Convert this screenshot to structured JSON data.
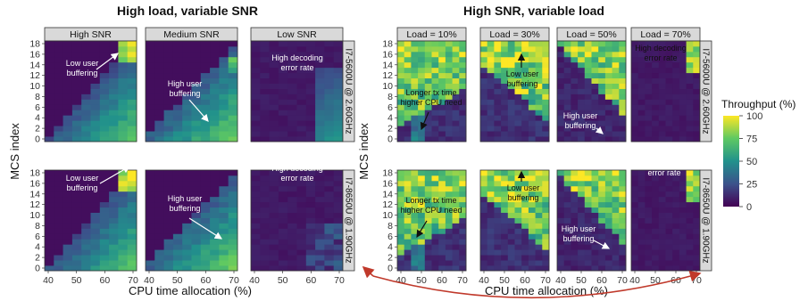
{
  "figure": {
    "left_title": "High load, variable SNR",
    "right_title": "High SNR, variable load",
    "ylabel": "MCS index",
    "xlabel": "CPU time allocation (%)",
    "row_labels": [
      "I7-5600U @ 2.60GHz",
      "I7-8650U @ 1.90GHz"
    ],
    "left_panels": [
      "High SNR",
      "Medium SNR",
      "Low SNR"
    ],
    "right_panels": [
      "Load = 10%",
      "Load = 30%",
      "Load = 50%",
      "Load = 70%"
    ],
    "legend_title": "Throughput (%)",
    "legend_ticks": [
      0,
      25,
      50,
      75,
      100
    ],
    "colors": {
      "accent_arrow": "#c0392b",
      "strip_bg": "#d9d9d9",
      "panel_border": "#333333"
    }
  },
  "annotations": {
    "low_user_buffering": "Low user\nbuffering",
    "high_user_buffering": "High user\nbuffering",
    "high_decoding_error": "High decoding\nerror rate",
    "longer_tx": "Longer tx time\nhigher CPU need"
  },
  "chart_data": {
    "type": "heatmap",
    "x_label": "CPU time allocation (%)",
    "y_label": "MCS index",
    "left_x_ticks": [
      40,
      50,
      60,
      70
    ],
    "right_x_ticks": [
      40,
      50,
      60,
      70
    ],
    "y_ticks": [
      0,
      2,
      4,
      6,
      8,
      10,
      12,
      14,
      16,
      18
    ],
    "xlim": [
      40,
      70
    ],
    "ylim": [
      0,
      18
    ],
    "colorscale": "viridis",
    "zlim": [
      0,
      100
    ]
  }
}
